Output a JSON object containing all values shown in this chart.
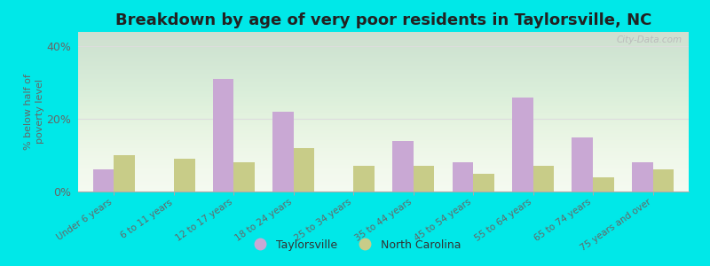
{
  "categories": [
    "Under 6 years",
    "6 to 11 years",
    "12 to 17 years",
    "18 to 24 years",
    "25 to 34 years",
    "35 to 44 years",
    "45 to 54 years",
    "55 to 64 years",
    "65 to 74 years",
    "75 years and over"
  ],
  "taylorsville": [
    6,
    0,
    31,
    22,
    0,
    14,
    8,
    26,
    15,
    8
  ],
  "north_carolina": [
    10,
    9,
    8,
    12,
    7,
    7,
    5,
    7,
    4,
    6
  ],
  "taylorsville_color": "#c9a8d4",
  "nc_color": "#c8cc88",
  "title": "Breakdown by age of very poor residents in Taylorsville, NC",
  "ylabel": "% below half of\npoverty level",
  "ylim": [
    0,
    44
  ],
  "yticks": [
    0,
    20,
    40
  ],
  "ytick_labels": [
    "0%",
    "20%",
    "40%"
  ],
  "bg_outer": "#00e8e8",
  "bg_plot_top": "#f5faf0",
  "bg_plot_bottom": "#e8f4dc",
  "watermark": "City-Data.com",
  "legend_taylorsville": "Taylorsville",
  "legend_nc": "North Carolina",
  "title_fontsize": 13,
  "bar_width": 0.35
}
